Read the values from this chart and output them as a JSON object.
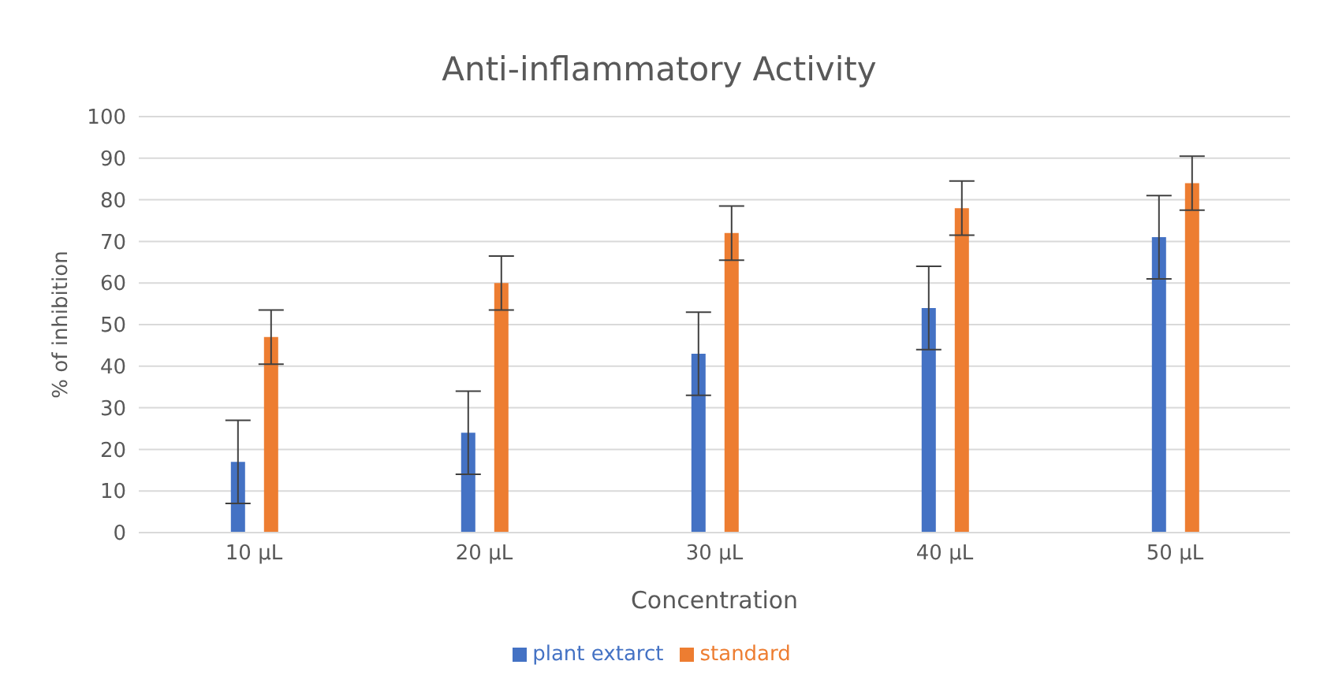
{
  "chart_data": {
    "type": "bar",
    "title": "Anti-inflammatory Activity",
    "xlabel": "Concentration",
    "ylabel": "% of inhibition",
    "categories": [
      "10 µL",
      "20  µL",
      "30  µL",
      "40  µL",
      "50  µL"
    ],
    "series": [
      {
        "name": "plant extarct",
        "color": "#4472c4",
        "values": [
          17,
          24,
          43,
          54,
          71
        ],
        "errors": [
          10,
          10,
          10,
          10,
          10
        ]
      },
      {
        "name": "standard",
        "color": "#ed7d31",
        "values": [
          47,
          60,
          72,
          78,
          84
        ],
        "errors": [
          6.5,
          6.5,
          6.5,
          6.5,
          6.5
        ]
      }
    ],
    "ylim": [
      0,
      100
    ],
    "yticks": [
      0,
      10,
      20,
      30,
      40,
      50,
      60,
      70,
      80,
      90,
      100
    ],
    "grid": "y",
    "legend": "bottom"
  }
}
